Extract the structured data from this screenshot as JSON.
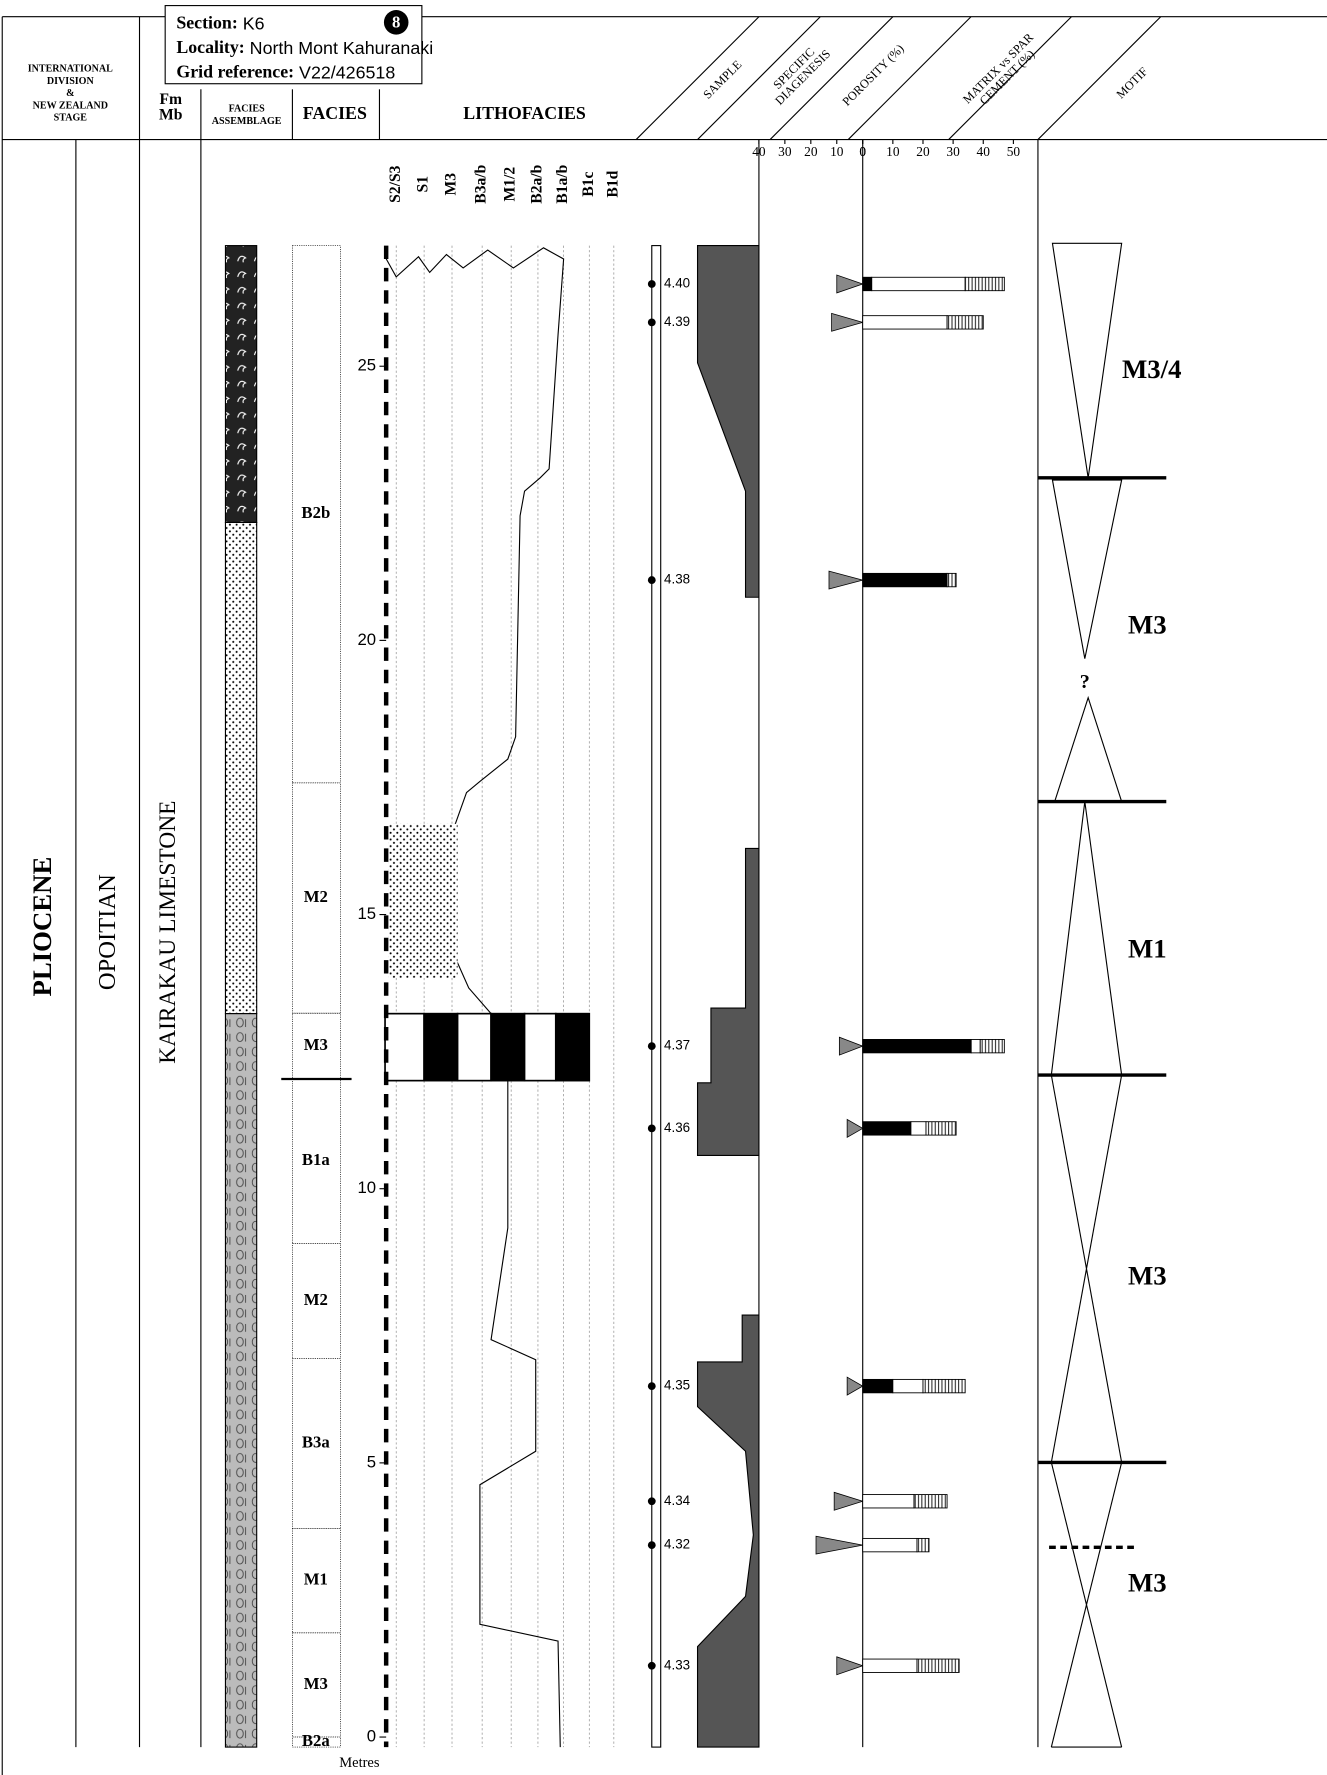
{
  "header": {
    "section_label": "Section:",
    "section": "K6",
    "locality_label": "Locality:",
    "locality": "North Mont Kahuranaki",
    "grid_label": "Grid reference:",
    "grid": "V22/426518",
    "section_number": "8"
  },
  "columns": {
    "stage": [
      "INTERNATIONAL",
      "DIVISION",
      "&",
      "NEW ZEALAND",
      "STAGE"
    ],
    "fm": [
      "Fm",
      "Mb"
    ],
    "facies_assemblage": [
      "FACIES",
      "ASSEMBLAGE"
    ],
    "facies": "FACIES",
    "lithofacies": "LITHOFACIES",
    "sample": "SAMPLE",
    "diagenesis": [
      "SPECIFIC",
      "DIAGENESIS"
    ],
    "porosity": "POROSITY (%)",
    "matrix": [
      "MATRIX vs SPAR",
      "CEMENT (%)"
    ],
    "motif": "MOTIF"
  },
  "units": {
    "epoch": "PLIOCENE",
    "stage": "OPOITIAN",
    "formation": "KAIRAKAU LIMESTONE"
  },
  "lithofacies_classes": [
    "S2/S3",
    "S1",
    "M3",
    "B3a/b",
    "M1/2",
    "B2a/b",
    "B1a/b",
    "B1c",
    "B1d"
  ],
  "depth_axis": {
    "label": "Metres",
    "ylim": [
      0,
      27.2
    ],
    "ticks": [
      0,
      5,
      10,
      15,
      20,
      25
    ]
  },
  "facies": [
    {
      "label": "B2b",
      "top": 27.2,
      "base": 17.4
    },
    {
      "label": "M2",
      "top": 17.4,
      "base": 13.2
    },
    {
      "label": "M3",
      "top": 13.2,
      "base": 12
    },
    {
      "label": "B1a",
      "top": 12,
      "base": 9
    },
    {
      "label": "M2",
      "top": 9,
      "base": 6.9
    },
    {
      "label": "B3a",
      "top": 6.9,
      "base": 3.8
    },
    {
      "label": "M1",
      "top": 3.8,
      "base": 1.9
    },
    {
      "label": "M3",
      "top": 1.9,
      "base": 0
    },
    {
      "label": "B2a",
      "top": 0,
      "base": -0.2
    }
  ],
  "samples": [
    {
      "id": "4.40",
      "depth": 26.5,
      "porosity": 10,
      "cement": 3,
      "matrix": 31,
      "other": 13
    },
    {
      "id": "4.39",
      "depth": 25.8,
      "porosity": 12,
      "cement": 0,
      "matrix": 28,
      "other": 12
    },
    {
      "id": "4.38",
      "depth": 21.1,
      "porosity": 13,
      "cement": 28,
      "matrix": 0,
      "other": 3
    },
    {
      "id": "4.37",
      "depth": 12.6,
      "porosity": 9,
      "cement": 36,
      "matrix": 3,
      "other": 8
    },
    {
      "id": "4.36",
      "depth": 11.1,
      "porosity": 6,
      "cement": 16,
      "matrix": 5,
      "other": 10
    },
    {
      "id": "4.35",
      "depth": 6.4,
      "porosity": 6,
      "cement": 10,
      "matrix": 10,
      "other": 14
    },
    {
      "id": "4.34",
      "depth": 4.3,
      "porosity": 11,
      "cement": 0,
      "matrix": 17,
      "other": 11
    },
    {
      "id": "4.32",
      "depth": 3.5,
      "porosity": 18,
      "cement": 0,
      "matrix": 18,
      "other": 4
    },
    {
      "id": "4.33",
      "depth": 1.3,
      "porosity": 10,
      "cement": 0,
      "matrix": 18,
      "other": 14
    }
  ],
  "porosity_axis": {
    "xlim": [
      0,
      40
    ],
    "ticks": [
      40,
      30,
      20,
      10,
      0
    ]
  },
  "matrix_axis": {
    "xlim": [
      0,
      50
    ],
    "ticks": [
      0,
      10,
      20,
      30,
      40,
      50
    ]
  },
  "motifs": [
    "M3/4",
    "M3",
    "?",
    "M1",
    "M3",
    "M3"
  ]
}
